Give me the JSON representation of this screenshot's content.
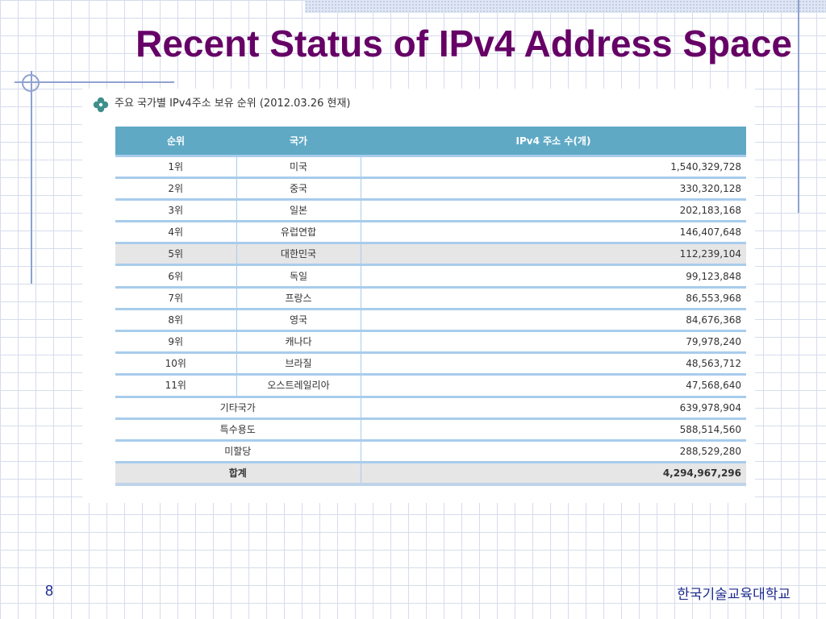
{
  "slide": {
    "title": "Recent Status of IPv4 Address Space",
    "page_number": "8",
    "footer": "한국기술교육대학교"
  },
  "panel": {
    "caption": "주요 국가별 IPv4주소 보유 순위 (2012.03.26 현재)",
    "caption_icon": "clover-icon"
  },
  "table": {
    "headers": [
      "순위",
      "국가",
      "IPv4 주소 수(개)"
    ],
    "rows": [
      {
        "rank": "1위",
        "country": "미국",
        "count": "1,540,329,728"
      },
      {
        "rank": "2위",
        "country": "중국",
        "count": "330,320,128"
      },
      {
        "rank": "3위",
        "country": "일본",
        "count": "202,183,168"
      },
      {
        "rank": "4위",
        "country": "유럽연합",
        "count": "146,407,648"
      },
      {
        "rank": "5위",
        "country": "대한민국",
        "count": "112,239,104"
      },
      {
        "rank": "6위",
        "country": "독일",
        "count": "99,123,848"
      },
      {
        "rank": "7위",
        "country": "프랑스",
        "count": "86,553,968"
      },
      {
        "rank": "8위",
        "country": "영국",
        "count": "84,676,368"
      },
      {
        "rank": "9위",
        "country": "캐나다",
        "count": "79,978,240"
      },
      {
        "rank": "10위",
        "country": "브라질",
        "count": "48,563,712"
      },
      {
        "rank": "11위",
        "country": "오스트레일리아",
        "count": "47,568,640"
      }
    ],
    "extra_rows": [
      {
        "label": "기타국가",
        "count": "639,978,904"
      },
      {
        "label": "특수용도",
        "count": "588,514,560"
      },
      {
        "label": "미할당",
        "count": "288,529,280"
      }
    ],
    "total": {
      "label": "합계",
      "count": "4,294,967,296"
    }
  },
  "colors": {
    "title": "#660066",
    "header_bg": "#5fa9c5",
    "row_separator": "#a8ccec",
    "highlight_row": "#e6e6e6",
    "footer_text": "#1c2a8c"
  }
}
